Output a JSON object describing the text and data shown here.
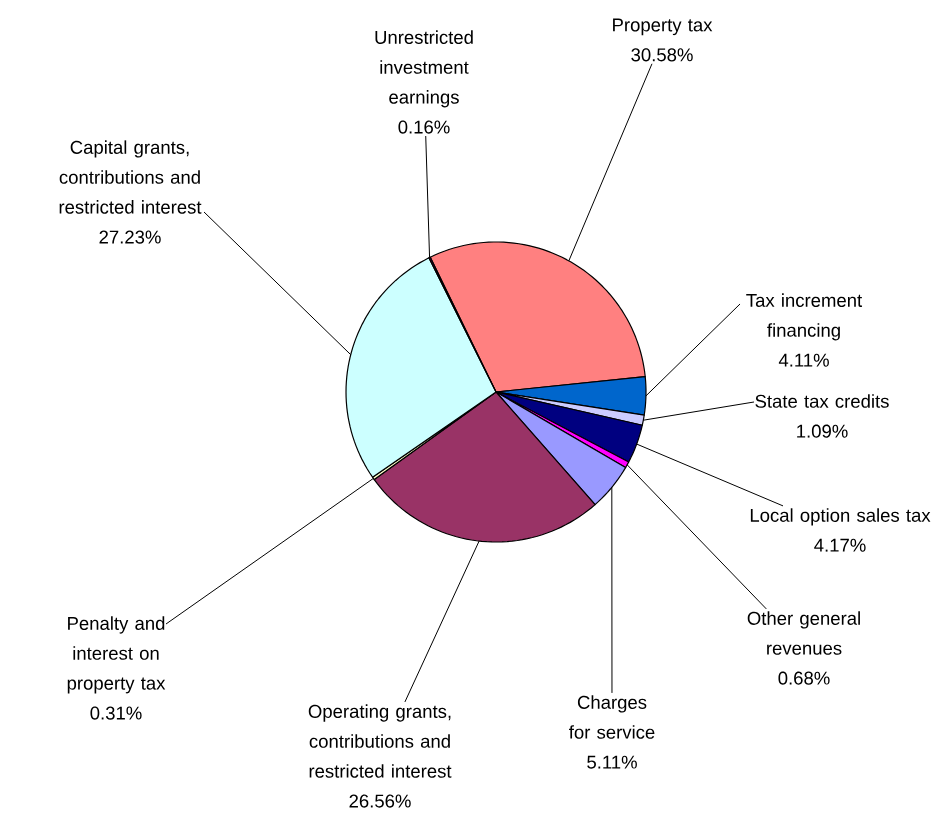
{
  "chart_data": {
    "type": "pie",
    "categories": [
      "Property tax",
      "Tax increment financing",
      "State tax credits",
      "Local option sales tax",
      "Other general revenues",
      "Charges for service",
      "Operating grants, contributions and restricted interest",
      "Penalty and interest on property tax",
      "Capital grants, contributions and restricted interest",
      "Unrestricted investment earnings"
    ],
    "values": [
      30.58,
      4.11,
      1.09,
      4.17,
      0.68,
      5.11,
      26.56,
      0.31,
      27.23,
      0.16
    ],
    "value_labels": [
      "30.58%",
      "4.11%",
      "1.09%",
      "4.17%",
      "0.68%",
      "5.11%",
      "26.56%",
      "0.31%",
      "27.23%",
      "0.16%"
    ],
    "colors": [
      "#ff8080",
      "#0066cc",
      "#ccccff",
      "#000080",
      "#ff00ff",
      "#9999ff",
      "#993366",
      "#ffffcc",
      "#ccffff",
      "#660066"
    ]
  }
}
